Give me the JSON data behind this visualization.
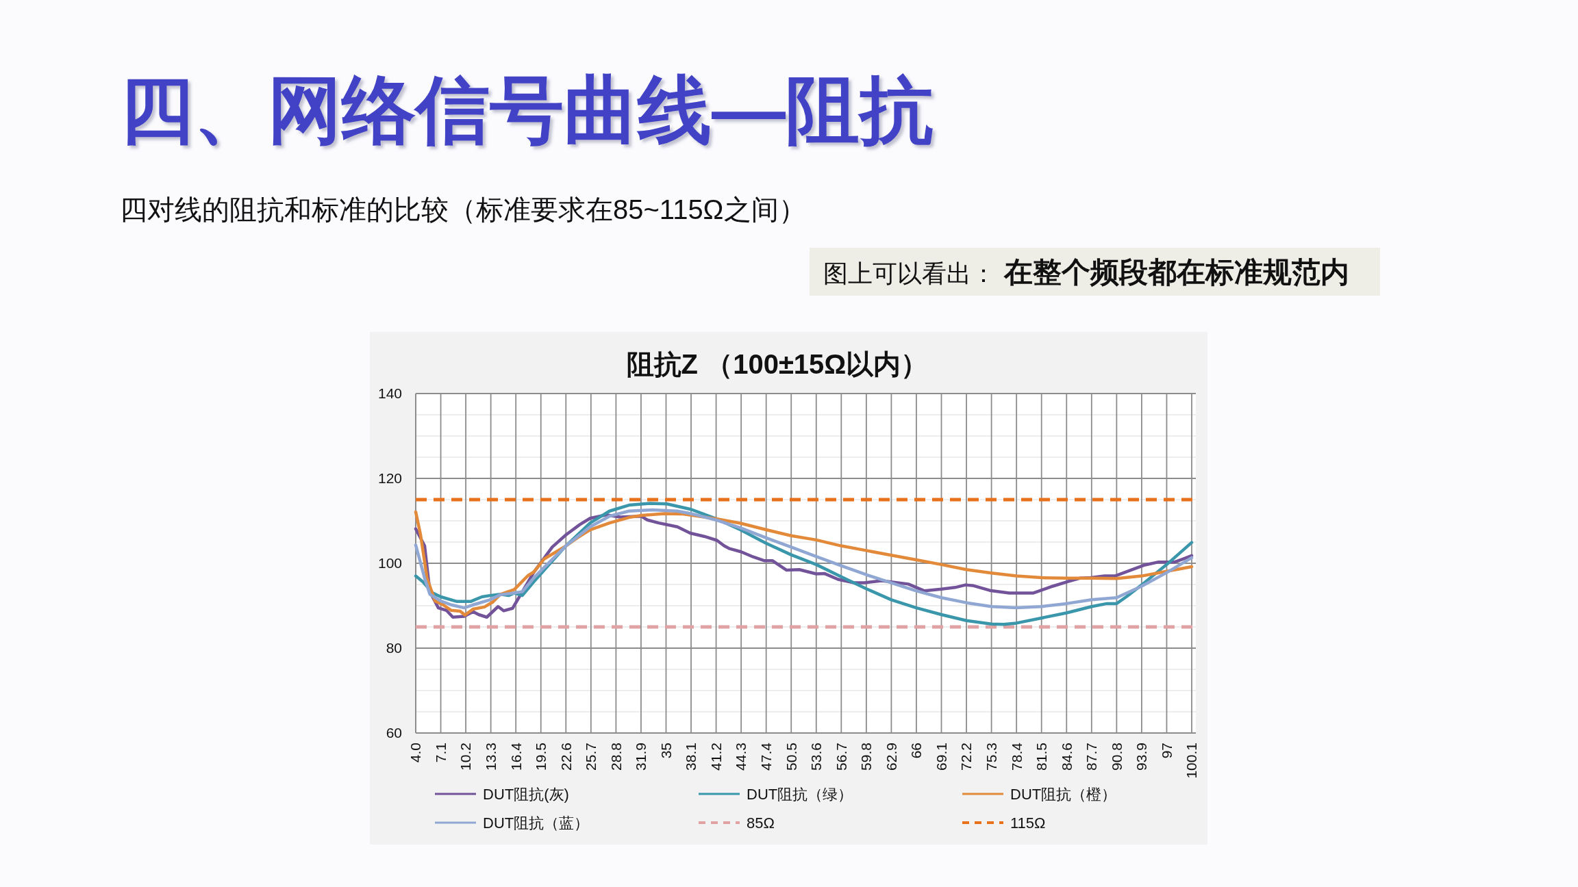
{
  "chart_data": {
    "type": "line",
    "title": "阻抗Z （100±15Ω以内）",
    "annotations": [
      "四、网络信号曲线—阻抗",
      "四对线的阻抗和标准的比较（标准要求在85~115Ω之间）",
      "图上可以看出：",
      "在整个频段都在标准规范内"
    ],
    "xlim": [
      4,
      100.1
    ],
    "xticks": [
      {
        "value": 4,
        "label": "4.0"
      },
      7.1,
      10.2,
      13.3,
      16.4,
      19.5,
      22.6,
      25.7,
      28.8,
      31.9,
      35,
      38.1,
      41.2,
      44.3,
      47.4,
      50.5,
      53.6,
      56.7,
      59.8,
      62.9,
      66,
      69.1,
      72.2,
      75.3,
      78.4,
      81.5,
      84.6,
      87.7,
      90.8,
      93.9,
      97,
      100.1
    ],
    "ylim": [
      60,
      140
    ],
    "yticks": [
      60,
      {
        "value": 65,
        "label": null
      },
      {
        "value": 70,
        "label": null
      },
      {
        "value": 75,
        "label": null
      },
      80,
      {
        "value": 85,
        "label": null
      },
      {
        "value": 90,
        "label": null
      },
      {
        "value": 95,
        "label": null
      },
      100,
      {
        "value": 105,
        "label": null
      },
      {
        "value": 110,
        "label": null
      },
      {
        "value": 115,
        "label": null
      },
      120,
      {
        "value": 125,
        "label": null
      },
      {
        "value": 130,
        "label": null
      },
      {
        "value": 135,
        "label": null
      },
      140
    ],
    "grid": true,
    "legend": "bottom",
    "series": [
      {
        "name": "DUT阻抗(灰)",
        "color": "#72539a",
        "x": [
          4,
          5.1,
          5.75,
          6.8,
          7.8,
          8.6,
          10,
          11.1,
          11.8,
          12.8,
          14.2,
          14.9,
          16,
          17.2,
          18.6,
          20.9,
          22.6,
          24.3,
          25.6,
          27.6,
          29.3,
          31.9,
          32.7,
          34.1,
          36.4,
          38,
          39.8,
          41.3,
          42.2,
          42.8,
          44.3,
          45.8,
          47.2,
          48.2,
          49.9,
          51.5,
          53.6,
          54.6,
          56.3,
          58.3,
          59.6,
          61.7,
          65,
          66,
          67,
          69.1,
          70.8,
          72.1,
          73.1,
          75.1,
          77.5,
          80.5,
          82.9,
          84.6,
          86.3,
          87.6,
          89.3,
          90.6,
          92.7,
          94.3,
          96,
          98,
          99,
          100.1
        ],
        "values": [
          108.1,
          104.1,
          93.3,
          89.5,
          88.9,
          87.3,
          87.5,
          88.6,
          87.9,
          87.3,
          89.8,
          88.8,
          89.4,
          93.3,
          97.8,
          103.8,
          106.7,
          109.1,
          110.6,
          111.4,
          110.9,
          111.1,
          110.2,
          109.5,
          108.6,
          107.1,
          106.3,
          105.4,
          104.1,
          103.5,
          102.7,
          101.5,
          100.6,
          100.6,
          98.4,
          98.5,
          97.5,
          97.6,
          96.2,
          95.4,
          95.4,
          95.9,
          95.1,
          94.3,
          93.5,
          93.9,
          94.3,
          94.9,
          94.7,
          93.6,
          93,
          93,
          94.6,
          95.6,
          96.5,
          96.6,
          97,
          97,
          98.5,
          99.6,
          100.3,
          100.3,
          101,
          101.8
        ]
      },
      {
        "name": "DUT阻抗（绿）",
        "color": "#3a96aa",
        "x": [
          4,
          4.9,
          6.1,
          7.1,
          9.1,
          10.8,
          12.2,
          13.2,
          14.5,
          15.5,
          16.2,
          17.2,
          18.6,
          19.9,
          22.6,
          25.6,
          28,
          30.4,
          33,
          35.1,
          38.1,
          41.2,
          44.2,
          47.3,
          50.5,
          53.6,
          56.7,
          59.8,
          62.9,
          66,
          69.1,
          72.2,
          75.3,
          76.8,
          78.4,
          81.5,
          84.6,
          87.7,
          89.6,
          90.8,
          92,
          93.9,
          97,
          100.1
        ],
        "values": [
          97,
          95.6,
          93,
          92.1,
          91,
          91,
          92.1,
          92.4,
          92.7,
          92.4,
          93,
          92.4,
          95.6,
          98.4,
          104.1,
          109.5,
          112.3,
          113.7,
          114.1,
          114,
          112.7,
          110.5,
          107.9,
          104.8,
          102,
          99.7,
          96.8,
          94,
          91.4,
          89.5,
          87.9,
          86.5,
          85.7,
          85.6,
          85.9,
          87.1,
          88.3,
          89.8,
          90.5,
          90.5,
          92.1,
          94.9,
          99.7,
          104.9
        ]
      },
      {
        "name": "DUT阻抗（橙）",
        "color": "#e2893a",
        "x": [
          4,
          4.6,
          5.4,
          6.4,
          7.4,
          8.4,
          9.5,
          10.1,
          11.1,
          12.5,
          13.5,
          14.5,
          16.2,
          17.9,
          18.6,
          19.9,
          22.6,
          24,
          25.6,
          28,
          30.4,
          32,
          34.8,
          37.1,
          41.2,
          44.3,
          47.4,
          50.5,
          53.6,
          56.7,
          59.8,
          62.9,
          66,
          69.1,
          72.2,
          75.3,
          78.4,
          81.5,
          84.6,
          87.7,
          90.8,
          93.9,
          97,
          100.1
        ],
        "values": [
          112.1,
          106.7,
          96.5,
          91.1,
          90.2,
          88.9,
          88.7,
          87.8,
          89.2,
          89.7,
          90.8,
          92.7,
          93.8,
          97.1,
          97.9,
          101,
          104.1,
          106,
          107.9,
          109.5,
          110.8,
          111.3,
          111.7,
          111.6,
          110.5,
          109.4,
          107.9,
          106.5,
          105.5,
          104.1,
          103,
          101.9,
          100.8,
          99.7,
          98.5,
          97.7,
          97,
          96.6,
          96.5,
          96.5,
          96.4,
          97,
          98.1,
          99.2
        ]
      },
      {
        "name": "DUT阻抗（蓝）",
        "color": "#8fa7d2",
        "x": [
          4,
          5.1,
          5.75,
          7.1,
          8.4,
          10,
          11.1,
          13.2,
          14.5,
          16.2,
          17.2,
          18.6,
          19.9,
          22.6,
          25.6,
          28,
          30.4,
          33.3,
          36.4,
          38.1,
          41.2,
          44.3,
          47.4,
          50.5,
          53.6,
          56.7,
          59.8,
          62.9,
          66,
          69.1,
          72.2,
          75.3,
          78.4,
          81.5,
          84.6,
          87.7,
          90.8,
          93.9,
          97,
          100.1
        ],
        "values": [
          104.3,
          96.5,
          92.7,
          91.1,
          90.2,
          89.5,
          90.2,
          91.4,
          92.6,
          93,
          93.3,
          96.5,
          99,
          104.1,
          108.6,
          111.1,
          112.3,
          112.6,
          112.3,
          111.7,
          110.2,
          108.3,
          106,
          103.8,
          101.6,
          99.4,
          97.3,
          95.4,
          93.5,
          91.9,
          90.7,
          89.8,
          89.5,
          89.8,
          90.5,
          91.4,
          91.9,
          94.6,
          97.8,
          101.3
        ]
      }
    ],
    "ref_lines": [
      {
        "axis": "y",
        "value": 85,
        "label": "85Ω",
        "color": "#e0a2a2",
        "line_style": "dashed"
      },
      {
        "axis": "y",
        "value": 115,
        "label": "115Ω",
        "color": "#e8711c",
        "line_style": "dashed"
      }
    ]
  }
}
